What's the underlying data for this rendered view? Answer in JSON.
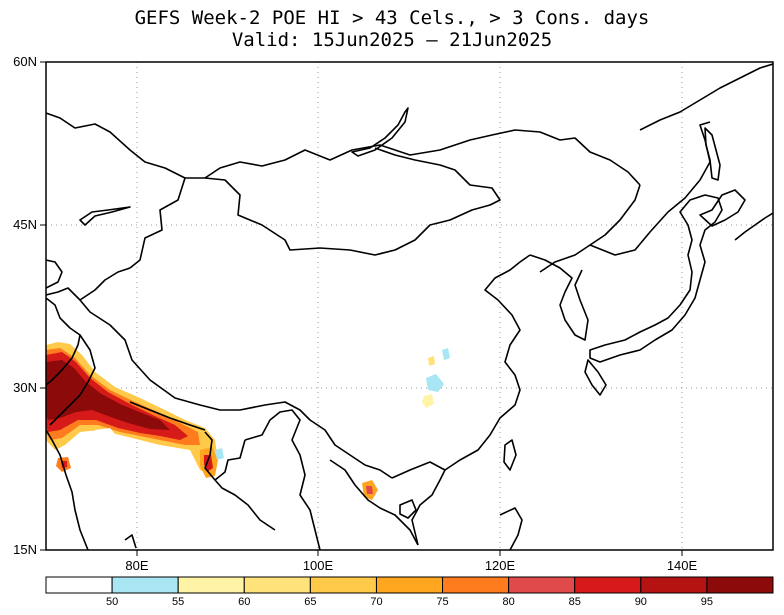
{
  "title": {
    "line1": "GEFS Week-2 POE HI > 43 Cels., > 3 Cons. days",
    "line2": "Valid: 15Jun2025 – 21Jun2025"
  },
  "map": {
    "lat_ticks": [
      "60N",
      "45N",
      "30N",
      "15N"
    ],
    "lon_ticks": [
      "80E",
      "100E",
      "120E",
      "140E"
    ],
    "lon_range": [
      70,
      150
    ],
    "lat_range": [
      15,
      60
    ],
    "grid": "dotted"
  },
  "colorbar": {
    "labels": [
      "50",
      "55",
      "60",
      "65",
      "70",
      "75",
      "80",
      "85",
      "90",
      "95"
    ],
    "colors": [
      "#ffffff",
      "#a8e6f4",
      "#fff4a6",
      "#ffe27a",
      "#ffc94a",
      "#ffa51e",
      "#ff7c1e",
      "#e04a4a",
      "#d61a1a",
      "#b51212",
      "#8c0a0a"
    ]
  }
}
